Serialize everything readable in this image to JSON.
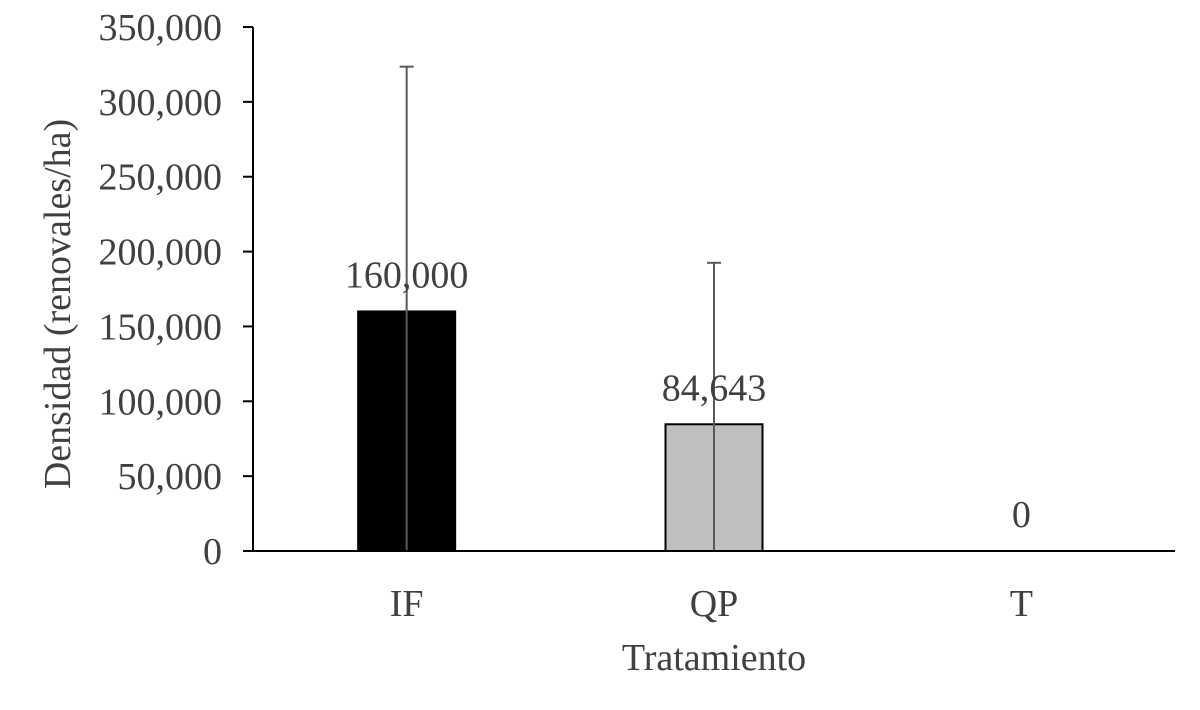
{
  "chart_data": {
    "type": "bar",
    "title": "",
    "xlabel": "Tratamiento",
    "ylabel": "Densidad (renovales/ha)",
    "ylim": [
      0,
      350000
    ],
    "yticks": [
      0,
      50000,
      100000,
      150000,
      200000,
      250000,
      300000,
      350000
    ],
    "ytick_labels": [
      "0",
      "50,000",
      "100,000",
      "150,000",
      "200,000",
      "250,000",
      "300,000",
      "350,000"
    ],
    "categories": [
      "IF",
      "QP",
      "T"
    ],
    "values": [
      160000,
      84643,
      0
    ],
    "data_labels": [
      "160,000",
      "84,643",
      "0"
    ],
    "error_upper": [
      323500,
      192500,
      0
    ],
    "bar_colors": [
      "#000000",
      "#bfbfbf",
      "#bfbfbf"
    ],
    "grid": false,
    "legend": "none"
  }
}
